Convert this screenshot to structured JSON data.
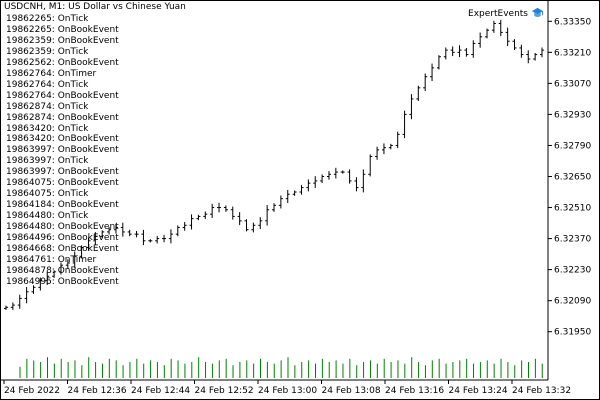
{
  "chart": {
    "title": "USDCNH, M1:  US Dollar vs Chinese Yuan",
    "expert_name": "ExpertEvents",
    "expert_icon": "graduation-cap-icon",
    "colors": {
      "background": "#ffffff",
      "bars": "#000000",
      "volume": "#008000",
      "axis": "#000000"
    }
  },
  "log": [
    "19862265: OnTick",
    "19862265: OnBookEvent",
    "19862359: OnBookEvent",
    "19862359: OnTick",
    "19862562: OnBookEvent",
    "19862764: OnTimer",
    "19862764: OnTick",
    "19862764: OnBookEvent",
    "19862874: OnTick",
    "19862874: OnBookEvent",
    "19863420: OnTick",
    "19863420: OnBookEvent",
    "19863997: OnBookEvent",
    "19863997: OnTick",
    "19863997: OnBookEvent",
    "19864075: OnBookEvent",
    "19864075: OnTick",
    "19864184: OnBookEvent",
    "19864480: OnTick",
    "19864480: OnBookEvent",
    "19864496: OnBookEvent",
    "19864668: OnBookEvent",
    "19864761: OnTimer",
    "19864878: OnBookEvent",
    "19864995: OnBookEvent"
  ],
  "chart_data": {
    "type": "ohlc",
    "symbol": "USDCNH",
    "timeframe": "M1",
    "title": "USDCNH, M1:  US Dollar vs Chinese Yuan",
    "y_ticks": [
      "6.33350",
      "6.33210",
      "6.33070",
      "6.32930",
      "6.32790",
      "6.32650",
      "6.32510",
      "6.32370",
      "6.32230",
      "6.32090",
      "6.31950"
    ],
    "x_ticks": [
      "24 Feb 2022",
      "24 Feb 12:36",
      "24 Feb 12:44",
      "24 Feb 12:52",
      "24 Feb 13:00",
      "24 Feb 13:08",
      "24 Feb 13:16",
      "24 Feb 13:24",
      "24 Feb 13:32"
    ],
    "ylim": [
      6.319,
      6.334
    ],
    "grid": false,
    "close": [
      6.3206,
      6.3207,
      6.321,
      6.3213,
      6.3215,
      6.3218,
      6.322,
      6.3222,
      6.3225,
      6.3226,
      6.3229,
      6.3233,
      6.3236,
      6.3238,
      6.324,
      6.3241,
      6.3242,
      6.324,
      6.3239,
      6.3239,
      6.3236,
      6.3236,
      6.3237,
      6.3237,
      6.3239,
      6.3242,
      6.3243,
      6.3246,
      6.3247,
      6.3248,
      6.3251,
      6.3251,
      6.325,
      6.3247,
      6.3245,
      6.3241,
      6.3243,
      6.3245,
      6.325,
      6.3252,
      6.3255,
      6.3257,
      6.3258,
      6.326,
      6.3262,
      6.3263,
      6.3265,
      6.3266,
      6.3267,
      6.3267,
      6.3263,
      6.326,
      6.3266,
      6.3274,
      6.3277,
      6.3278,
      6.3279,
      6.3284,
      6.3293,
      6.33,
      6.3305,
      6.331,
      6.3314,
      6.3319,
      6.3322,
      6.3321,
      6.3322,
      6.332,
      6.3325,
      6.3328,
      6.3331,
      6.3334,
      6.333,
      6.3326,
      6.3323,
      6.332,
      6.3318,
      6.332,
      6.3322
    ],
    "volume": [
      0.35,
      0.6,
      0.55,
      0.5,
      0.65,
      0.45,
      0.6,
      0.5,
      0.55,
      0.4,
      0.65,
      0.5,
      0.45,
      0.6,
      0.55,
      0.4,
      0.5,
      0.6,
      0.45,
      0.55,
      0.5,
      0.4,
      0.6,
      0.55,
      0.45,
      0.5,
      0.65,
      0.5,
      0.45,
      0.55,
      0.6,
      0.4,
      0.5,
      0.55,
      0.45,
      0.6,
      0.5,
      0.45,
      0.55,
      0.65,
      0.4,
      0.5,
      0.55,
      0.45,
      0.6,
      0.5,
      0.55,
      0.45,
      0.6,
      0.4,
      0.5,
      0.55,
      0.45,
      0.6,
      0.5,
      0.55,
      0.45,
      0.65,
      0.5,
      0.4,
      0.55,
      0.6,
      0.45,
      0.5,
      0.55,
      0.6,
      0.45,
      0.5,
      0.55,
      0.45,
      0.6,
      0.5,
      0.4,
      0.55,
      0.5,
      0.6,
      0.45,
      0.55,
      0.5
    ]
  }
}
